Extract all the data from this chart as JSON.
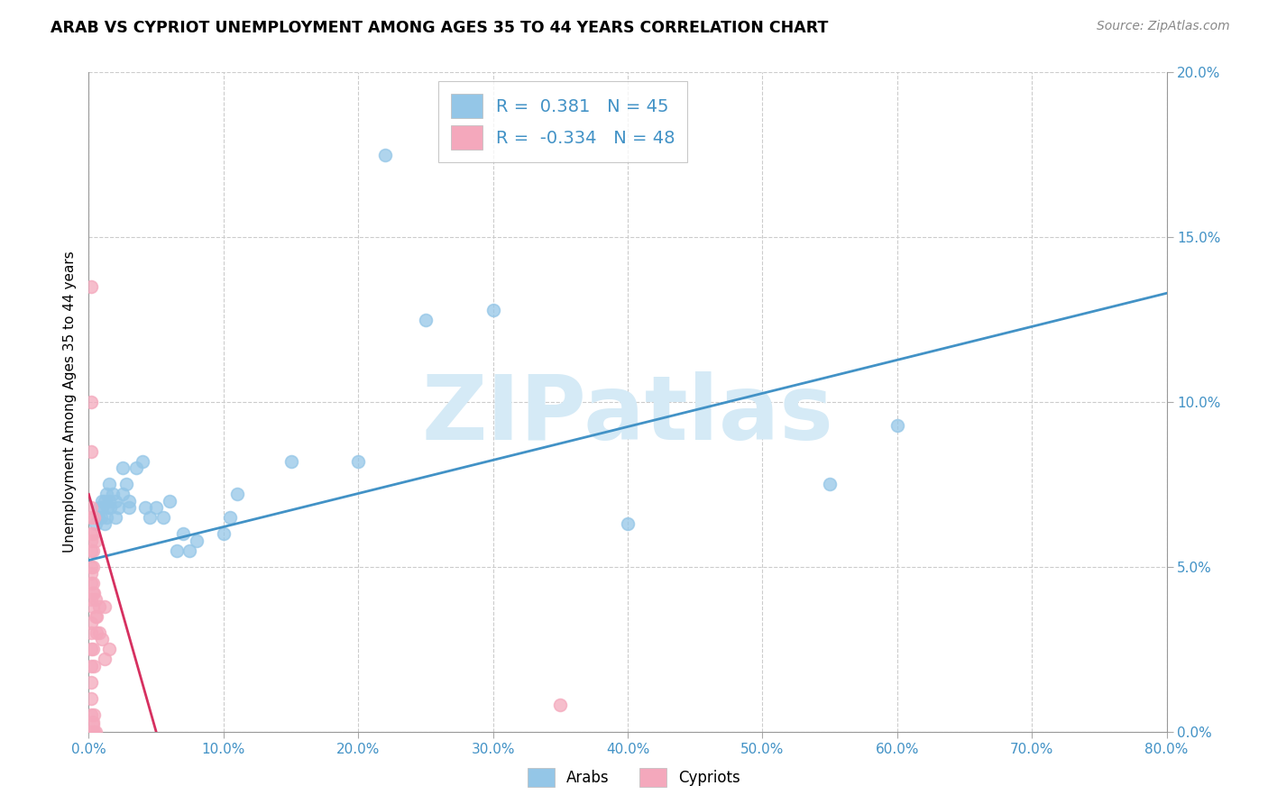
{
  "title": "ARAB VS CYPRIOT UNEMPLOYMENT AMONG AGES 35 TO 44 YEARS CORRELATION CHART",
  "source": "Source: ZipAtlas.com",
  "ylabel_text": "Unemployment Among Ages 35 to 44 years",
  "xlim": [
    0.0,
    0.8
  ],
  "ylim": [
    0.0,
    0.2
  ],
  "xticks": [
    0.0,
    0.1,
    0.2,
    0.3,
    0.4,
    0.5,
    0.6,
    0.7,
    0.8
  ],
  "yticks": [
    0.0,
    0.05,
    0.1,
    0.15,
    0.2
  ],
  "xtick_labels": [
    "0.0%",
    "10.0%",
    "20.0%",
    "30.0%",
    "40.0%",
    "50.0%",
    "60.0%",
    "70.0%",
    "80.0%"
  ],
  "ytick_labels": [
    "0.0%",
    "5.0%",
    "10.0%",
    "15.0%",
    "20.0%"
  ],
  "legend_entries": [
    {
      "label": "Arabs",
      "color": "#94c6e7",
      "R": 0.381,
      "N": 45
    },
    {
      "label": "Cypriots",
      "color": "#f4a8bc",
      "R": -0.334,
      "N": 48
    }
  ],
  "watermark": "ZIPatlas",
  "watermark_color": "#d5eaf6",
  "arab_scatter": [
    [
      0.005,
      0.063
    ],
    [
      0.007,
      0.065
    ],
    [
      0.008,
      0.068
    ],
    [
      0.009,
      0.065
    ],
    [
      0.01,
      0.07
    ],
    [
      0.01,
      0.068
    ],
    [
      0.012,
      0.063
    ],
    [
      0.012,
      0.07
    ],
    [
      0.013,
      0.072
    ],
    [
      0.013,
      0.065
    ],
    [
      0.014,
      0.068
    ],
    [
      0.015,
      0.07
    ],
    [
      0.015,
      0.075
    ],
    [
      0.016,
      0.068
    ],
    [
      0.018,
      0.072
    ],
    [
      0.02,
      0.065
    ],
    [
      0.02,
      0.07
    ],
    [
      0.022,
      0.068
    ],
    [
      0.025,
      0.072
    ],
    [
      0.025,
      0.08
    ],
    [
      0.028,
      0.075
    ],
    [
      0.03,
      0.07
    ],
    [
      0.03,
      0.068
    ],
    [
      0.035,
      0.08
    ],
    [
      0.04,
      0.082
    ],
    [
      0.042,
      0.068
    ],
    [
      0.045,
      0.065
    ],
    [
      0.05,
      0.068
    ],
    [
      0.055,
      0.065
    ],
    [
      0.06,
      0.07
    ],
    [
      0.065,
      0.055
    ],
    [
      0.07,
      0.06
    ],
    [
      0.075,
      0.055
    ],
    [
      0.08,
      0.058
    ],
    [
      0.1,
      0.06
    ],
    [
      0.105,
      0.065
    ],
    [
      0.11,
      0.072
    ],
    [
      0.15,
      0.082
    ],
    [
      0.2,
      0.082
    ],
    [
      0.22,
      0.175
    ],
    [
      0.25,
      0.125
    ],
    [
      0.3,
      0.128
    ],
    [
      0.4,
      0.063
    ],
    [
      0.55,
      0.075
    ],
    [
      0.6,
      0.093
    ]
  ],
  "cypriot_scatter": [
    [
      0.002,
      0.135
    ],
    [
      0.002,
      0.1
    ],
    [
      0.002,
      0.085
    ],
    [
      0.002,
      0.068
    ],
    [
      0.002,
      0.065
    ],
    [
      0.002,
      0.06
    ],
    [
      0.002,
      0.058
    ],
    [
      0.002,
      0.055
    ],
    [
      0.002,
      0.05
    ],
    [
      0.002,
      0.048
    ],
    [
      0.002,
      0.045
    ],
    [
      0.002,
      0.04
    ],
    [
      0.003,
      0.06
    ],
    [
      0.003,
      0.055
    ],
    [
      0.003,
      0.05
    ],
    [
      0.003,
      0.045
    ],
    [
      0.003,
      0.042
    ],
    [
      0.004,
      0.065
    ],
    [
      0.004,
      0.042
    ],
    [
      0.005,
      0.058
    ],
    [
      0.005,
      0.04
    ],
    [
      0.005,
      0.035
    ],
    [
      0.006,
      0.035
    ],
    [
      0.006,
      0.03
    ],
    [
      0.008,
      0.038
    ],
    [
      0.008,
      0.03
    ],
    [
      0.01,
      0.028
    ],
    [
      0.012,
      0.022
    ],
    [
      0.012,
      0.038
    ],
    [
      0.015,
      0.025
    ],
    [
      0.002,
      0.0
    ],
    [
      0.003,
      0.0
    ],
    [
      0.004,
      0.0
    ],
    [
      0.002,
      0.005
    ],
    [
      0.002,
      0.01
    ],
    [
      0.002,
      0.015
    ],
    [
      0.002,
      0.02
    ],
    [
      0.002,
      0.025
    ],
    [
      0.003,
      0.002
    ],
    [
      0.003,
      0.003
    ],
    [
      0.004,
      0.005
    ],
    [
      0.005,
      0.0
    ],
    [
      0.35,
      0.008
    ],
    [
      0.002,
      0.03
    ],
    [
      0.002,
      0.033
    ],
    [
      0.003,
      0.038
    ],
    [
      0.003,
      0.025
    ],
    [
      0.004,
      0.02
    ]
  ],
  "arab_line_color": "#4292c6",
  "cypriot_line_color": "#d63060",
  "legend_text_color": "#4292c6",
  "tick_color": "#4292c6",
  "grid_color": "#cccccc",
  "background_color": "#ffffff",
  "arab_line_start_x": 0.0,
  "arab_line_end_x": 0.8,
  "arab_line_start_y": 0.052,
  "arab_line_end_y": 0.133,
  "cypriot_line_start_x": 0.0,
  "cypriot_line_end_x": 0.05,
  "cypriot_line_start_y": 0.072,
  "cypriot_line_end_y": 0.0
}
